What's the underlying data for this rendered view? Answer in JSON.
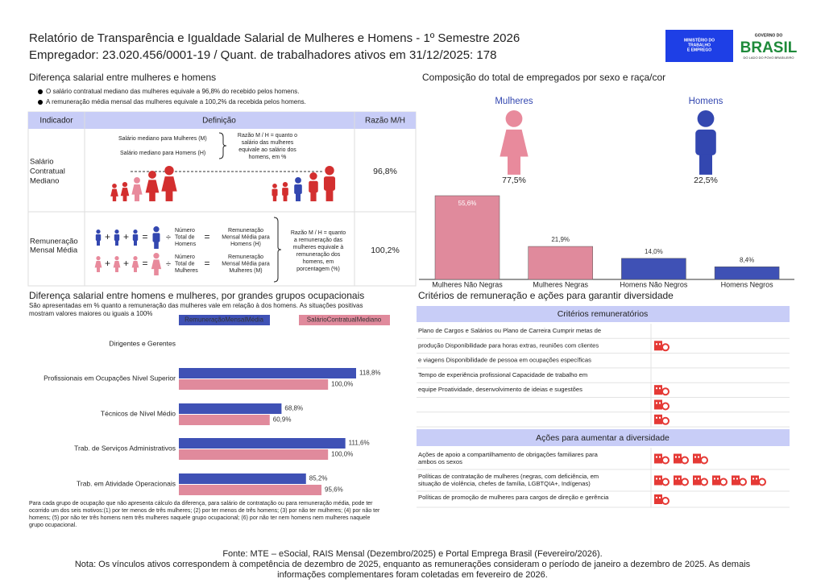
{
  "header": {
    "title": "Relatório de Transparência e Igualdade Salarial de Mulheres e Homens - 1º Semestre 2026",
    "subtitle": "Empregador: 23.020.456/0001-19 / Quant. de trabalhadores ativos em 31/12/2025: 178",
    "ministry_logo": [
      "MINISTÉRIO DO",
      "TRABALHO",
      "E EMPREGO"
    ],
    "government_logo": {
      "top": "GOVERNO DO",
      "name": "BRASIL",
      "tagline": "DO LADO DO POVO BRASILEIRO"
    }
  },
  "pay_gap": {
    "title": "Diferença salarial entre mulheres e homens",
    "bullets": [
      "O salário contratual mediano das mulheres equivale a 96,8% do recebido pelos homens.",
      "A remuneração média mensal das mulheres equivale a 100,2% da recebida pelos homens."
    ],
    "table": {
      "headers": [
        "Indicador",
        "Definição",
        "Razão M/H"
      ],
      "rows": [
        {
          "indicator": [
            "Salário",
            "Contratual",
            "Mediano"
          ],
          "ratio": "96,8%",
          "definition": {
            "women_median": "Salário mediano para Mulheres (M)",
            "men_median": "Salário mediano para Homens (H)",
            "explanation": [
              "Razão M / H = quanto o",
              "salário das mulheres",
              "equivale ao salário dos",
              "homens, em %"
            ]
          }
        },
        {
          "indicator": [
            "Remuneração",
            "Mensal Média"
          ],
          "ratio": "100,2%",
          "definition": {
            "operators": {
              "plus": "+",
              "equals": "=",
              "divide": "÷"
            },
            "men_count": [
              "Número",
              "Total de",
              "Homens"
            ],
            "men_pay": [
              "Remuneração",
              "Mensal Média para",
              "Homens (H)"
            ],
            "women_count": [
              "Número",
              "Total de",
              "Mulheres"
            ],
            "women_pay": [
              "Remuneração",
              "Mensal Média para",
              "Mulheres (M)"
            ],
            "explanation": [
              "Razão M / H = quanto",
              "a remuneração das",
              "mulheres equivale à",
              "remuneração dos",
              "homens, em",
              "porcentagem (%)"
            ]
          }
        }
      ]
    }
  },
  "composition": {
    "title": "Composição do total de empregados por sexo e raça/cor",
    "groups": [
      {
        "label": "Mulheres",
        "share": "77,5%",
        "color": "#e88a9c"
      },
      {
        "label": "Homens",
        "share": "22,5%",
        "color": "#3347b0"
      }
    ]
  },
  "chart_data": [
    {
      "type": "bar",
      "categories": [
        "Mulheres Não Negras",
        "Mulheres Negras",
        "Homens Não Negros",
        "Homens Negros"
      ],
      "values": [
        55.6,
        21.9,
        14.0,
        8.4
      ],
      "value_labels": [
        "55,6%",
        "21,9%",
        "14,0%",
        "8,4%"
      ],
      "colors": [
        "#e08a9c",
        "#e08a9c",
        "#3f51b5",
        "#3f51b5"
      ]
    },
    {
      "type": "hbar",
      "title": "Diferença salarial entre homens e mulheres, por grandes grupos ocupacionais",
      "subtitle": [
        "São apresentadas em % quanto a remuneração das mulheres vale em relação à dos homens. As situações positivas",
        "mostram valores maiores ou iguais a 100%"
      ],
      "categories": [
        "Dirigentes e Gerentes",
        "Profissionais em Ocupações Nível Superior",
        "Técnicos de Nível Médio",
        "Trab. de Serviços Administrativos",
        "Trab. em Atividade Operacionais"
      ],
      "series": [
        {
          "name": "RemuneraçãoMensalMédia",
          "color": "#3f51b5",
          "values": [
            null,
            118.8,
            68.8,
            111.6,
            85.2
          ],
          "value_labels": [
            null,
            "118,8%",
            "68,8%",
            "111,6%",
            "85,2%"
          ]
        },
        {
          "name": "SalárioContratualMediano",
          "color": "#e08a9c",
          "values": [
            null,
            100.0,
            60.9,
            100.0,
            95.6
          ],
          "value_labels": [
            null,
            "100,0%",
            "60,9%",
            "100,0%",
            "95,6%"
          ]
        }
      ],
      "footnote": [
        "Para cada grupo de ocupação que não apresenta cálculo da diferença, para salário de contratação ou para remuneração média, pode ter",
        "ocorrido um dos seis motivos:(1) por ter menos de três mulheres; (2) por ter menos de três homens; (3) por não ter mulheres; (4) por não ter",
        "homens; (5) por não ter três homens nem três mulheres naquele grupo ocupacional; (6) por não ter nem homens nem mulheres naquele",
        "grupo ocupacional."
      ]
    }
  ],
  "criteria": {
    "title": "Critérios de remuneração e ações para garantir diversidade",
    "remuneration": {
      "header": "Critérios remuneratórios",
      "rows": [
        {
          "text": "Plano de Cargos e Salários ou Plano de Carreira Cumprir metas de"
        },
        {
          "text": "produção Disponibilidade para horas extras, reuniões com clientes",
          "icons": 1
        },
        {
          "text": "e viagens Disponibilidade de pessoa em ocupações específicas"
        },
        {
          "text": "Tempo de experiência profissional Capacidade de trabalho em"
        },
        {
          "text": "equipe Proatividade, desenvolvimento de ideias e sugestões",
          "icons": 1
        },
        {
          "icons": 1
        },
        {
          "icons": 1
        }
      ]
    },
    "actions": {
      "header": "Ações para aumentar a diversidade",
      "rows": [
        {
          "text": [
            "Ações de apoio a compartilhamento de obrigações familiares para",
            "ambos os sexos"
          ],
          "icons": 3
        },
        {
          "text": [
            "Políticas de contratação de mulheres (negras, com deficiência, em",
            "situação de violência, chefes de família, LGBTQIA+, Indígenas)"
          ],
          "icons": 6
        },
        {
          "text": [
            "Políticas de promoção de mulheres para cargos de direção e gerência"
          ],
          "icons": 1
        }
      ]
    }
  },
  "footer": {
    "source": "Fonte: MTE – eSocial, RAIS Mensal (Dezembro/2025) e Portal Emprega Brasil (Fevereiro/2026).",
    "note": [
      "Nota: Os vínculos ativos correspondem à competência de dezembro de 2025, enquanto as remunerações consideram o período de janeiro a dezembro de 2025. As demais",
      "informações complementares foram coletadas em fevereiro de 2026."
    ]
  }
}
